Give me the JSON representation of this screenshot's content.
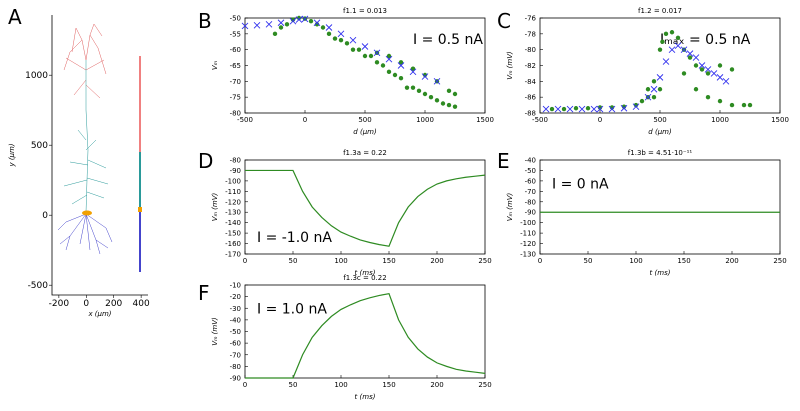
{
  "chart_data": [
    {
      "type": "morphology",
      "panel": "A",
      "xlabel": "x (μm)",
      "ylabel": "y (μm)",
      "xlim": [
        -250,
        450
      ],
      "ylim": [
        -570,
        1430
      ],
      "xticks": [
        -200,
        0,
        200,
        400
      ],
      "yticks": [
        -500,
        0,
        500,
        1000
      ]
    },
    {
      "type": "scatter",
      "panel": "B",
      "title": "f1.1 = 0.013",
      "xlabel": "d (μm)",
      "ylabel": "Vₘ",
      "annotation": "I = 0.5 nA",
      "xlim": [
        -500,
        1500
      ],
      "ylim": [
        -80,
        -50
      ],
      "xticks": [
        -500,
        0,
        500,
        1000,
        1500
      ],
      "yticks": [
        -80,
        -75,
        -70,
        -65,
        -60,
        -55,
        -50
      ],
      "series": [
        {
          "color": "#2e8b22",
          "marker": "o",
          "x": [
            -250,
            -200,
            -150,
            -100,
            -50,
            0,
            50,
            100,
            150,
            200,
            250,
            300,
            350,
            400,
            450,
            500,
            550,
            600,
            650,
            700,
            750,
            800,
            850,
            900,
            950,
            1000,
            1050,
            1100,
            1150,
            1200,
            1250,
            600,
            700,
            800,
            900,
            1000,
            1100,
            1200,
            1250
          ],
          "values": [
            -55,
            -53,
            -52,
            -50.5,
            -50,
            -50.2,
            -51,
            -52,
            -53,
            -55,
            -56.5,
            -57,
            -58,
            -60,
            -60,
            -62,
            -62,
            -64,
            -65,
            -67,
            -68,
            -69,
            -72,
            -72,
            -73,
            -74,
            -75,
            -76,
            -77,
            -77.5,
            -78,
            -61,
            -62,
            -64,
            -66,
            -68,
            -70,
            -73,
            -74
          ]
        },
        {
          "color": "#3333ee",
          "marker": "x",
          "x": [
            -500,
            -400,
            -300,
            -200,
            -100,
            -50,
            0,
            100,
            200,
            300,
            400,
            500,
            600,
            700,
            800,
            900,
            1000,
            1100
          ],
          "values": [
            -52.5,
            -52.3,
            -52,
            -51.5,
            -51,
            -50.5,
            -50.3,
            -51.5,
            -53,
            -55,
            -57,
            -59,
            -61,
            -63,
            -65,
            -67,
            -68.5,
            -70
          ]
        }
      ]
    },
    {
      "type": "scatter",
      "panel": "C",
      "title": "f1.2 = 0.017",
      "xlabel": "d (μm)",
      "ylabel": "Vₘ (mV)",
      "annotation": "Iₘₐₓ = 0.5 nA",
      "xlim": [
        -500,
        1500
      ],
      "ylim": [
        -88,
        -76
      ],
      "xticks": [
        -500,
        0,
        500,
        1000,
        1500
      ],
      "yticks": [
        -88,
        -86,
        -84,
        -82,
        -80,
        -78,
        -76
      ],
      "series": [
        {
          "color": "#2e8b22",
          "marker": "o",
          "x": [
            -400,
            -300,
            -200,
            -100,
            0,
            100,
            200,
            300,
            350,
            400,
            450,
            500,
            520,
            550,
            600,
            650,
            700,
            750,
            800,
            850,
            900,
            1000,
            1100,
            700,
            800,
            900,
            1000,
            1100,
            1200,
            1250,
            400,
            450,
            500
          ],
          "values": [
            -87.5,
            -87.5,
            -87.4,
            -87.4,
            -87.3,
            -87.3,
            -87.2,
            -87,
            -86.5,
            -86,
            -84,
            -80,
            -79,
            -78,
            -77.8,
            -78.5,
            -80,
            -81,
            -82,
            -82.5,
            -83,
            -82,
            -82.5,
            -83,
            -85,
            -86,
            -86.5,
            -87,
            -87,
            -87,
            -85,
            -86,
            -85
          ]
        },
        {
          "color": "#3333ee",
          "marker": "x",
          "x": [
            -450,
            -350,
            -250,
            -150,
            -50,
            0,
            100,
            200,
            300,
            400,
            450,
            500,
            550,
            600,
            650,
            700,
            750,
            800,
            850,
            900,
            950,
            1000,
            1050
          ],
          "values": [
            -87.5,
            -87.5,
            -87.5,
            -87.5,
            -87.5,
            -87.5,
            -87.5,
            -87.4,
            -87.2,
            -86,
            -85,
            -83.5,
            -81.5,
            -80,
            -79.5,
            -80,
            -80.5,
            -81,
            -82,
            -82.5,
            -83,
            -83.5,
            -84
          ]
        }
      ]
    },
    {
      "type": "line",
      "panel": "D",
      "title": "f1.3a = 0.22",
      "xlabel": "t (ms)",
      "ylabel": "Vₘ (mV)",
      "annotation": "I = -1.0 nA",
      "xlim": [
        0,
        250
      ],
      "ylim": [
        -170,
        -80
      ],
      "xticks": [
        0,
        50,
        100,
        150,
        200,
        250
      ],
      "yticks": [
        -170,
        -160,
        -150,
        -140,
        -130,
        -120,
        -110,
        -100,
        -90,
        -80
      ],
      "series": [
        {
          "color": "#2e8b22",
          "x": [
            0,
            10,
            20,
            30,
            40,
            50,
            60,
            70,
            80,
            90,
            100,
            110,
            120,
            130,
            140,
            150,
            160,
            170,
            180,
            190,
            200,
            210,
            220,
            230,
            240,
            250
          ],
          "values": [
            -90,
            -90,
            -90,
            -90,
            -90,
            -90,
            -110,
            -125,
            -135,
            -143,
            -149,
            -153,
            -156.5,
            -159,
            -161,
            -162.5,
            -140,
            -125,
            -115,
            -108,
            -103,
            -100,
            -98,
            -96.5,
            -95.5,
            -94.5
          ]
        }
      ]
    },
    {
      "type": "line",
      "panel": "E",
      "title": "f1.3b = 4.51·10⁻¹¹",
      "xlabel": "t (ms)",
      "ylabel": "Vₘ (mV)",
      "annotation": "I = 0 nA",
      "xlim": [
        0,
        250
      ],
      "ylim": [
        -130,
        -40
      ],
      "xticks": [
        0,
        50,
        100,
        150,
        200,
        250
      ],
      "yticks": [
        -130,
        -120,
        -110,
        -100,
        -90,
        -80,
        -70,
        -60,
        -50,
        -40
      ],
      "series": [
        {
          "color": "#2e8b22",
          "x": [
            0,
            250
          ],
          "values": [
            -90,
            -90
          ]
        }
      ]
    },
    {
      "type": "line",
      "panel": "F",
      "title": "f1.3c = 0.22",
      "xlabel": "t (ms)",
      "ylabel": "Vₘ (mV)",
      "annotation": "I = 1.0 nA",
      "xlim": [
        0,
        250
      ],
      "ylim": [
        -90,
        -10
      ],
      "xticks": [
        0,
        50,
        100,
        150,
        200,
        250
      ],
      "yticks": [
        -90,
        -80,
        -70,
        -60,
        -50,
        -40,
        -30,
        -20,
        -10
      ],
      "series": [
        {
          "color": "#2e8b22",
          "x": [
            0,
            10,
            20,
            30,
            40,
            50,
            60,
            70,
            80,
            90,
            100,
            110,
            120,
            130,
            140,
            150,
            160,
            170,
            180,
            190,
            200,
            210,
            220,
            230,
            240,
            250
          ],
          "values": [
            -90,
            -90,
            -90,
            -90,
            -90,
            -90,
            -70,
            -55,
            -45,
            -37,
            -31,
            -27,
            -23.5,
            -21,
            -19,
            -17.5,
            -40,
            -55,
            -65,
            -72,
            -77,
            -80,
            -82.5,
            -84,
            -85,
            -86
          ]
        }
      ]
    }
  ]
}
